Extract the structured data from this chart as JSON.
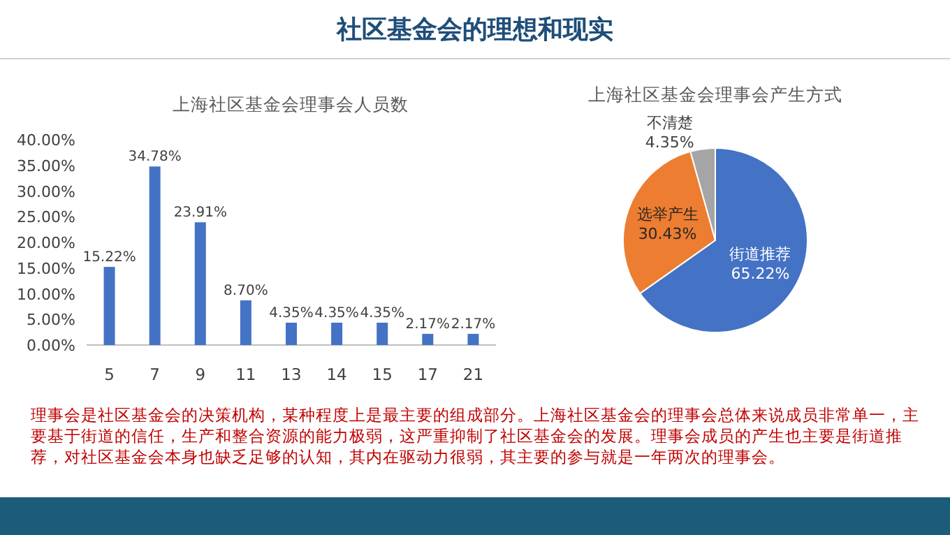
{
  "chart_data": [
    {
      "type": "other",
      "title": "社区基金会的理想和现实",
      "annotations": [
        "理事会是社区基金会的决策机构，某种程度上是最主要的组成部分。上海社区基金会的理事会总体来说成员非常单一，主要基于街道的信任，生产和整合资源的能力极弱，这严重抑制了社区基金会的发展。理事会成员的产生也主要是街道推荐，对社区基金会本身也缺乏足够的认知，其内在驱动力很弱，其主要的参与就是一年两次的理事会。"
      ]
    },
    {
      "type": "bar",
      "title": "上海社区基金会理事会人员数",
      "categories": [
        "5",
        "7",
        "9",
        "11",
        "13",
        "14",
        "15",
        "17",
        "21"
      ],
      "values": [
        15.22,
        34.78,
        23.91,
        8.7,
        4.35,
        4.35,
        4.35,
        2.17,
        2.17
      ],
      "value_labels": [
        "15.22%",
        "34.78%",
        "23.91%",
        "8.70%",
        "4.35%",
        "4.35%",
        "4.35%",
        "2.17%",
        "2.17%"
      ],
      "color": "#4472c4",
      "ylim": [
        0,
        40
      ],
      "yticks": [
        {
          "value": 0,
          "label": "0.00%"
        },
        {
          "value": 5,
          "label": "5.00%"
        },
        {
          "value": 10,
          "label": "10.00%"
        },
        {
          "value": 15,
          "label": "15.00%"
        },
        {
          "value": 20,
          "label": "20.00%"
        },
        {
          "value": 25,
          "label": "25.00%"
        },
        {
          "value": 30,
          "label": "30.00%"
        },
        {
          "value": 35,
          "label": "35.00%"
        },
        {
          "value": 40,
          "label": "40.00%"
        }
      ]
    },
    {
      "type": "pie",
      "title": "上海社区基金会理事会产生方式",
      "categories": [
        "街道推荐",
        "选举产生",
        "不清楚"
      ],
      "values": [
        65.22,
        30.43,
        4.35
      ],
      "colors": [
        "#4472c4",
        "#ed7d31",
        "#a5a5a5"
      ],
      "value_labels": [
        "65.22%",
        "30.43%",
        "4.35%"
      ]
    }
  ]
}
